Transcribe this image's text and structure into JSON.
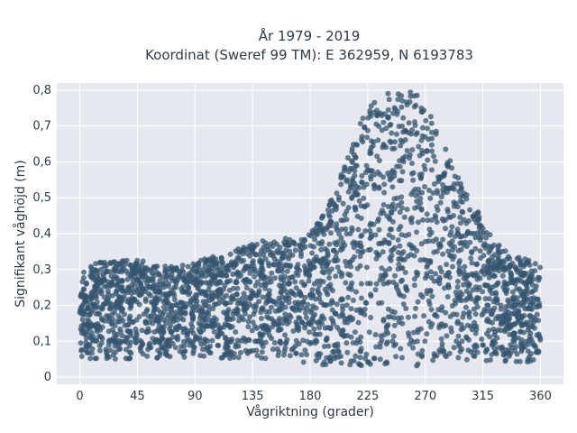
{
  "chart_data": {
    "type": "scatter",
    "title_line1": "År 1979 - 2019",
    "title_line2": "Koordinat (Sweref 99 TM): E 362959, N 6193783",
    "xlabel": "Vågriktning (grader)",
    "ylabel": "Signifikant våghöjd (m)",
    "xlim": [
      -18,
      378
    ],
    "ylim": [
      -0.02,
      0.82
    ],
    "xticks": [
      0,
      45,
      90,
      135,
      180,
      225,
      270,
      315,
      360
    ],
    "xtick_labels": [
      "0",
      "45",
      "90",
      "135",
      "180",
      "225",
      "270",
      "315",
      "360"
    ],
    "yticks": [
      0,
      0.1,
      0.2,
      0.3,
      0.4,
      0.5,
      0.6,
      0.7,
      0.8
    ],
    "ytick_labels": [
      "0",
      "0,1",
      "0,2",
      "0,3",
      "0,4",
      "0,5",
      "0,6",
      "0,7",
      "0,8"
    ],
    "grid": true,
    "marker_color": "#34566e",
    "plot_bg": "#e6e8f0",
    "envelope": {
      "x": [
        0,
        15,
        30,
        45,
        60,
        75,
        90,
        105,
        120,
        135,
        150,
        165,
        180,
        190,
        200,
        210,
        220,
        230,
        240,
        250,
        260,
        270,
        280,
        290,
        300,
        310,
        320,
        330,
        340,
        350,
        360
      ],
      "y_min": [
        0.05,
        0.05,
        0.05,
        0.05,
        0.05,
        0.05,
        0.06,
        0.05,
        0.05,
        0.05,
        0.05,
        0.04,
        0.04,
        0.03,
        0.03,
        0.03,
        0.03,
        0.03,
        0.03,
        0.03,
        0.03,
        0.03,
        0.03,
        0.03,
        0.03,
        0.04,
        0.04,
        0.04,
        0.04,
        0.04,
        0.05
      ],
      "y_max": [
        0.3,
        0.32,
        0.33,
        0.33,
        0.31,
        0.31,
        0.32,
        0.34,
        0.35,
        0.38,
        0.38,
        0.39,
        0.4,
        0.45,
        0.52,
        0.63,
        0.72,
        0.77,
        0.79,
        0.8,
        0.8,
        0.76,
        0.69,
        0.6,
        0.53,
        0.47,
        0.4,
        0.36,
        0.34,
        0.33,
        0.32
      ]
    }
  }
}
